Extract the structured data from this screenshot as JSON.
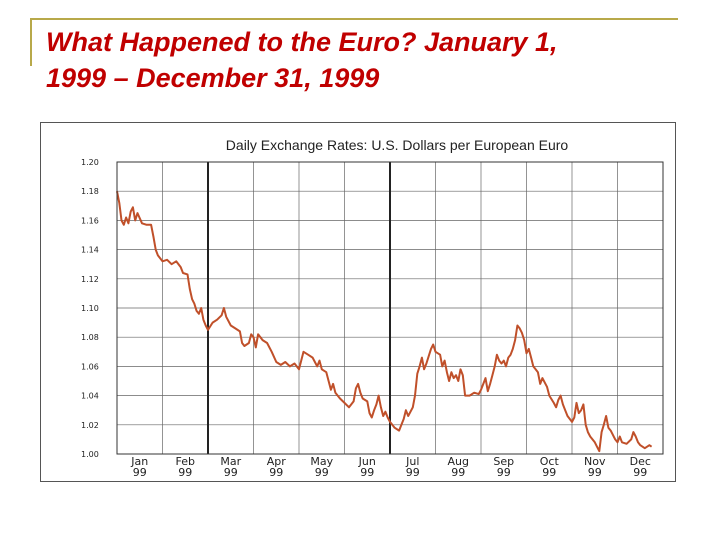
{
  "slide": {
    "title_line1": "What Happened to the Euro?  January 1,",
    "title_line2": "1999 – December 31, 1999",
    "title_color": "#c00000",
    "frame_color": "#b8a94a"
  },
  "chart_data": {
    "type": "line",
    "title": "Daily Exchange Rates: U.S. Dollars per European Euro",
    "xlabel": "",
    "ylabel": "",
    "ylim": [
      1.0,
      1.2
    ],
    "yticks": [
      "1.00",
      "1.02",
      "1.04",
      "1.06",
      "1.08",
      "1.10",
      "1.12",
      "1.14",
      "1.16",
      "1.18",
      "1.20"
    ],
    "xlim": [
      0,
      12
    ],
    "x_categories": [
      {
        "month": "Jan",
        "year": "99"
      },
      {
        "month": "Feb",
        "year": "99"
      },
      {
        "month": "Mar",
        "year": "99"
      },
      {
        "month": "Apr",
        "year": "99"
      },
      {
        "month": "May",
        "year": "99"
      },
      {
        "month": "Jun",
        "year": "99"
      },
      {
        "month": "Jul",
        "year": "99"
      },
      {
        "month": "Aug",
        "year": "99"
      },
      {
        "month": "Sep",
        "year": "99"
      },
      {
        "month": "Oct",
        "year": "99"
      },
      {
        "month": "Nov",
        "year": "99"
      },
      {
        "month": "Dec",
        "year": "99"
      }
    ],
    "quarter_dividers": [
      2,
      6
    ],
    "grid": true,
    "line_color": "#c0502a",
    "series": [
      {
        "points": [
          [
            0.0,
            1.18
          ],
          [
            0.05,
            1.172
          ],
          [
            0.1,
            1.16
          ],
          [
            0.15,
            1.157
          ],
          [
            0.2,
            1.162
          ],
          [
            0.25,
            1.158
          ],
          [
            0.3,
            1.166
          ],
          [
            0.35,
            1.169
          ],
          [
            0.4,
            1.16
          ],
          [
            0.45,
            1.165
          ],
          [
            0.55,
            1.158
          ],
          [
            0.65,
            1.157
          ],
          [
            0.75,
            1.157
          ],
          [
            0.8,
            1.149
          ],
          [
            0.85,
            1.14
          ],
          [
            0.9,
            1.136
          ],
          [
            1.0,
            1.132
          ],
          [
            1.1,
            1.133
          ],
          [
            1.2,
            1.13
          ],
          [
            1.3,
            1.132
          ],
          [
            1.4,
            1.128
          ],
          [
            1.45,
            1.124
          ],
          [
            1.55,
            1.123
          ],
          [
            1.6,
            1.113
          ],
          [
            1.65,
            1.106
          ],
          [
            1.7,
            1.103
          ],
          [
            1.75,
            1.098
          ],
          [
            1.8,
            1.096
          ],
          [
            1.85,
            1.1
          ],
          [
            1.9,
            1.092
          ],
          [
            1.95,
            1.088
          ],
          [
            2.0,
            1.085
          ],
          [
            2.1,
            1.09
          ],
          [
            2.2,
            1.092
          ],
          [
            2.3,
            1.095
          ],
          [
            2.35,
            1.1
          ],
          [
            2.4,
            1.094
          ],
          [
            2.5,
            1.088
          ],
          [
            2.6,
            1.086
          ],
          [
            2.7,
            1.084
          ],
          [
            2.75,
            1.076
          ],
          [
            2.8,
            1.074
          ],
          [
            2.9,
            1.076
          ],
          [
            2.95,
            1.082
          ],
          [
            3.0,
            1.08
          ],
          [
            3.05,
            1.073
          ],
          [
            3.1,
            1.082
          ],
          [
            3.2,
            1.078
          ],
          [
            3.3,
            1.076
          ],
          [
            3.4,
            1.07
          ],
          [
            3.5,
            1.063
          ],
          [
            3.6,
            1.061
          ],
          [
            3.7,
            1.063
          ],
          [
            3.8,
            1.06
          ],
          [
            3.9,
            1.062
          ],
          [
            4.0,
            1.058
          ],
          [
            4.1,
            1.07
          ],
          [
            4.2,
            1.068
          ],
          [
            4.3,
            1.066
          ],
          [
            4.4,
            1.06
          ],
          [
            4.45,
            1.064
          ],
          [
            4.5,
            1.058
          ],
          [
            4.6,
            1.056
          ],
          [
            4.65,
            1.05
          ],
          [
            4.7,
            1.044
          ],
          [
            4.75,
            1.048
          ],
          [
            4.8,
            1.042
          ],
          [
            4.9,
            1.038
          ],
          [
            5.0,
            1.035
          ],
          [
            5.1,
            1.032
          ],
          [
            5.2,
            1.036
          ],
          [
            5.25,
            1.045
          ],
          [
            5.3,
            1.048
          ],
          [
            5.35,
            1.042
          ],
          [
            5.4,
            1.038
          ],
          [
            5.5,
            1.036
          ],
          [
            5.55,
            1.028
          ],
          [
            5.6,
            1.025
          ],
          [
            5.65,
            1.03
          ],
          [
            5.7,
            1.034
          ],
          [
            5.75,
            1.04
          ],
          [
            5.8,
            1.032
          ],
          [
            5.85,
            1.026
          ],
          [
            5.9,
            1.029
          ],
          [
            5.95,
            1.025
          ],
          [
            6.0,
            1.022
          ],
          [
            6.05,
            1.02
          ],
          [
            6.1,
            1.018
          ],
          [
            6.2,
            1.016
          ],
          [
            6.25,
            1.02
          ],
          [
            6.3,
            1.024
          ],
          [
            6.35,
            1.03
          ],
          [
            6.4,
            1.026
          ],
          [
            6.5,
            1.032
          ],
          [
            6.55,
            1.04
          ],
          [
            6.6,
            1.055
          ],
          [
            6.65,
            1.06
          ],
          [
            6.7,
            1.066
          ],
          [
            6.75,
            1.058
          ],
          [
            6.8,
            1.062
          ],
          [
            6.85,
            1.067
          ],
          [
            6.9,
            1.072
          ],
          [
            6.95,
            1.075
          ],
          [
            7.0,
            1.07
          ],
          [
            7.1,
            1.068
          ],
          [
            7.15,
            1.06
          ],
          [
            7.2,
            1.064
          ],
          [
            7.25,
            1.056
          ],
          [
            7.3,
            1.05
          ],
          [
            7.35,
            1.056
          ],
          [
            7.4,
            1.052
          ],
          [
            7.45,
            1.054
          ],
          [
            7.5,
            1.05
          ],
          [
            7.55,
            1.058
          ],
          [
            7.6,
            1.054
          ],
          [
            7.65,
            1.04
          ],
          [
            7.75,
            1.04
          ],
          [
            7.85,
            1.042
          ],
          [
            7.95,
            1.041
          ],
          [
            8.0,
            1.044
          ],
          [
            8.05,
            1.048
          ],
          [
            8.1,
            1.052
          ],
          [
            8.15,
            1.043
          ],
          [
            8.2,
            1.048
          ],
          [
            8.25,
            1.054
          ],
          [
            8.3,
            1.06
          ],
          [
            8.35,
            1.068
          ],
          [
            8.4,
            1.064
          ],
          [
            8.45,
            1.062
          ],
          [
            8.5,
            1.064
          ],
          [
            8.55,
            1.06
          ],
          [
            8.6,
            1.066
          ],
          [
            8.65,
            1.068
          ],
          [
            8.7,
            1.072
          ],
          [
            8.75,
            1.078
          ],
          [
            8.8,
            1.088
          ],
          [
            8.85,
            1.086
          ],
          [
            8.9,
            1.083
          ],
          [
            8.95,
            1.078
          ],
          [
            9.0,
            1.069
          ],
          [
            9.05,
            1.072
          ],
          [
            9.1,
            1.066
          ],
          [
            9.15,
            1.06
          ],
          [
            9.2,
            1.058
          ],
          [
            9.25,
            1.056
          ],
          [
            9.3,
            1.048
          ],
          [
            9.35,
            1.052
          ],
          [
            9.45,
            1.046
          ],
          [
            9.5,
            1.04
          ],
          [
            9.6,
            1.035
          ],
          [
            9.65,
            1.032
          ],
          [
            9.7,
            1.037
          ],
          [
            9.75,
            1.04
          ],
          [
            9.8,
            1.034
          ],
          [
            9.85,
            1.03
          ],
          [
            9.9,
            1.026
          ],
          [
            10.0,
            1.022
          ],
          [
            10.05,
            1.025
          ],
          [
            10.1,
            1.035
          ],
          [
            10.15,
            1.028
          ],
          [
            10.2,
            1.03
          ],
          [
            10.25,
            1.034
          ],
          [
            10.3,
            1.02
          ],
          [
            10.35,
            1.015
          ],
          [
            10.4,
            1.012
          ],
          [
            10.45,
            1.01
          ],
          [
            10.5,
            1.008
          ],
          [
            10.55,
            1.005
          ],
          [
            10.6,
            1.002
          ],
          [
            10.65,
            1.015
          ],
          [
            10.7,
            1.02
          ],
          [
            10.75,
            1.026
          ],
          [
            10.8,
            1.018
          ],
          [
            10.85,
            1.016
          ],
          [
            10.95,
            1.01
          ],
          [
            11.0,
            1.008
          ],
          [
            11.05,
            1.012
          ],
          [
            11.1,
            1.008
          ],
          [
            11.2,
            1.007
          ],
          [
            11.3,
            1.01
          ],
          [
            11.35,
            1.015
          ],
          [
            11.4,
            1.012
          ],
          [
            11.45,
            1.008
          ],
          [
            11.5,
            1.006
          ],
          [
            11.6,
            1.004
          ],
          [
            11.7,
            1.006
          ],
          [
            11.75,
            1.005
          ]
        ]
      }
    ]
  }
}
